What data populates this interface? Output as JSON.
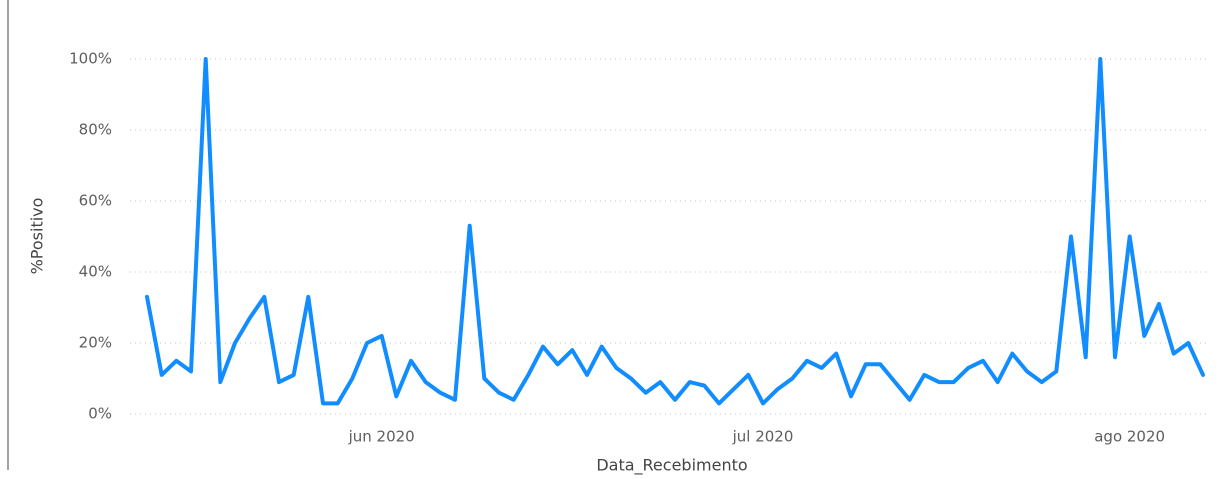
{
  "chart_data": {
    "type": "line",
    "x_label": "Data_Recebimento",
    "y_label": "%Positivo",
    "categories": [
      null,
      null,
      null,
      null,
      null,
      null,
      null,
      null,
      null,
      null,
      null,
      null,
      null,
      null,
      null,
      null,
      "jun 2020",
      null,
      null,
      null,
      null,
      null,
      null,
      null,
      null,
      null,
      null,
      null,
      null,
      null,
      null,
      null,
      null,
      null,
      null,
      null,
      null,
      null,
      null,
      null,
      null,
      null,
      "jul 2020",
      null,
      null,
      null,
      null,
      null,
      null,
      null,
      null,
      null,
      null,
      null,
      null,
      null,
      null,
      null,
      null,
      null,
      null,
      null,
      null,
      null,
      null,
      null,
      null,
      "ago 2020",
      null,
      null,
      null,
      null,
      null
    ],
    "series": [
      {
        "name": "%Positivo",
        "color": "#118dff",
        "values": [
          33,
          11,
          15,
          12,
          100,
          9,
          20,
          27,
          33,
          9,
          11,
          33,
          3,
          3,
          10,
          20,
          22,
          5,
          15,
          9,
          6,
          4,
          53,
          10,
          6,
          4,
          11,
          19,
          14,
          18,
          11,
          19,
          13,
          10,
          6,
          9,
          4,
          9,
          8,
          3,
          7,
          11,
          3,
          7,
          10,
          15,
          13,
          17,
          5,
          14,
          14,
          9,
          4,
          11,
          9,
          9,
          13,
          15,
          9,
          17,
          12,
          9,
          12,
          50,
          16,
          100,
          16,
          50,
          22,
          31,
          17,
          20,
          11
        ]
      }
    ],
    "ylim": [
      0,
      100
    ],
    "yticks": [
      {
        "value": 0,
        "label": "0%"
      },
      {
        "value": 20,
        "label": "20%"
      },
      {
        "value": 40,
        "label": "40%"
      },
      {
        "value": 60,
        "label": "60%"
      },
      {
        "value": 80,
        "label": "80%"
      },
      {
        "value": 100,
        "label": "100%"
      }
    ],
    "grid": true
  }
}
